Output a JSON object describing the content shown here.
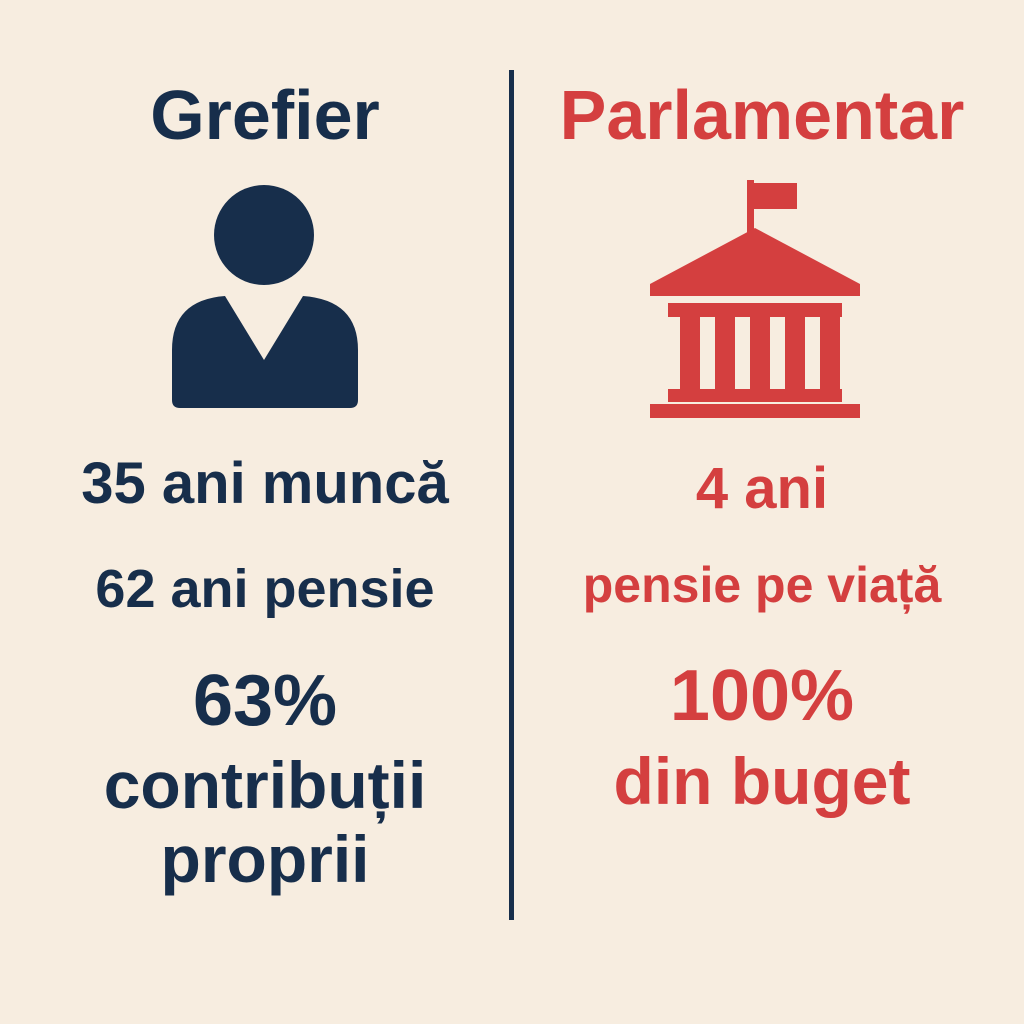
{
  "colors": {
    "background": "#f7ede0",
    "navy": "#172e4b",
    "red": "#d43f3f"
  },
  "left": {
    "title": "Grefier",
    "icon": "person-icon",
    "line1": "35 ani muncă",
    "line2": "62 ani pensie",
    "line3": "63%",
    "line4": "contribuții",
    "line5": "proprii"
  },
  "right": {
    "title": "Parlamentar",
    "icon": "parliament-building-icon",
    "line1": "4 ani",
    "line2": "pensie pe viață",
    "line3": "100%",
    "line4": "din buget"
  }
}
